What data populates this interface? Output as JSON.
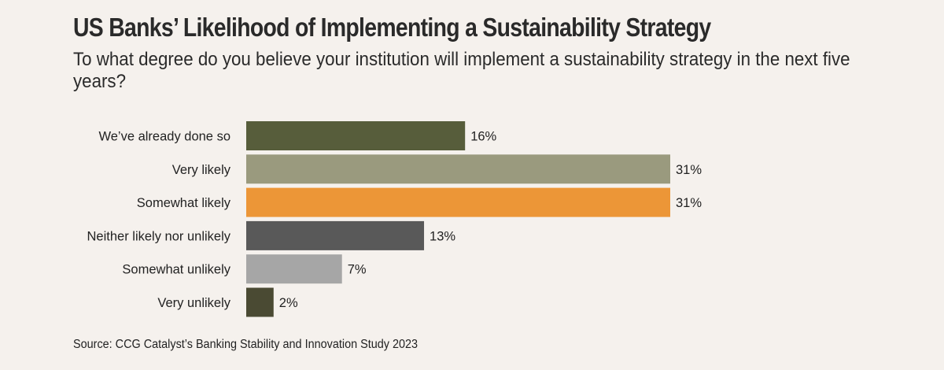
{
  "chart_data": {
    "type": "bar",
    "orientation": "horizontal",
    "title": "US Banks’ Likelihood of Implementing a Sustainability Strategy",
    "subtitle": "To what degree do you believe your institution will implement a sustainability strategy in the next five years?",
    "categories": [
      "We’ve already done so",
      "Very likely",
      "Somewhat likely",
      "Neither likely nor unlikely",
      "Somewhat unlikely",
      "Very unlikely"
    ],
    "values": [
      16,
      31,
      31,
      13,
      7,
      2
    ],
    "value_labels": [
      "16%",
      "31%",
      "31%",
      "13%",
      "7%",
      "2%"
    ],
    "colors": [
      "#575d3b",
      "#9a9a7e",
      "#ec9637",
      "#595959",
      "#a6a6a6",
      "#4a4a33"
    ],
    "xlabel": "",
    "ylabel": "",
    "xlim": [
      0,
      31
    ],
    "grid": false,
    "legend": "none",
    "source": "Source: CCG Catalyst’s Banking Stability and Innovation Study 2023"
  }
}
